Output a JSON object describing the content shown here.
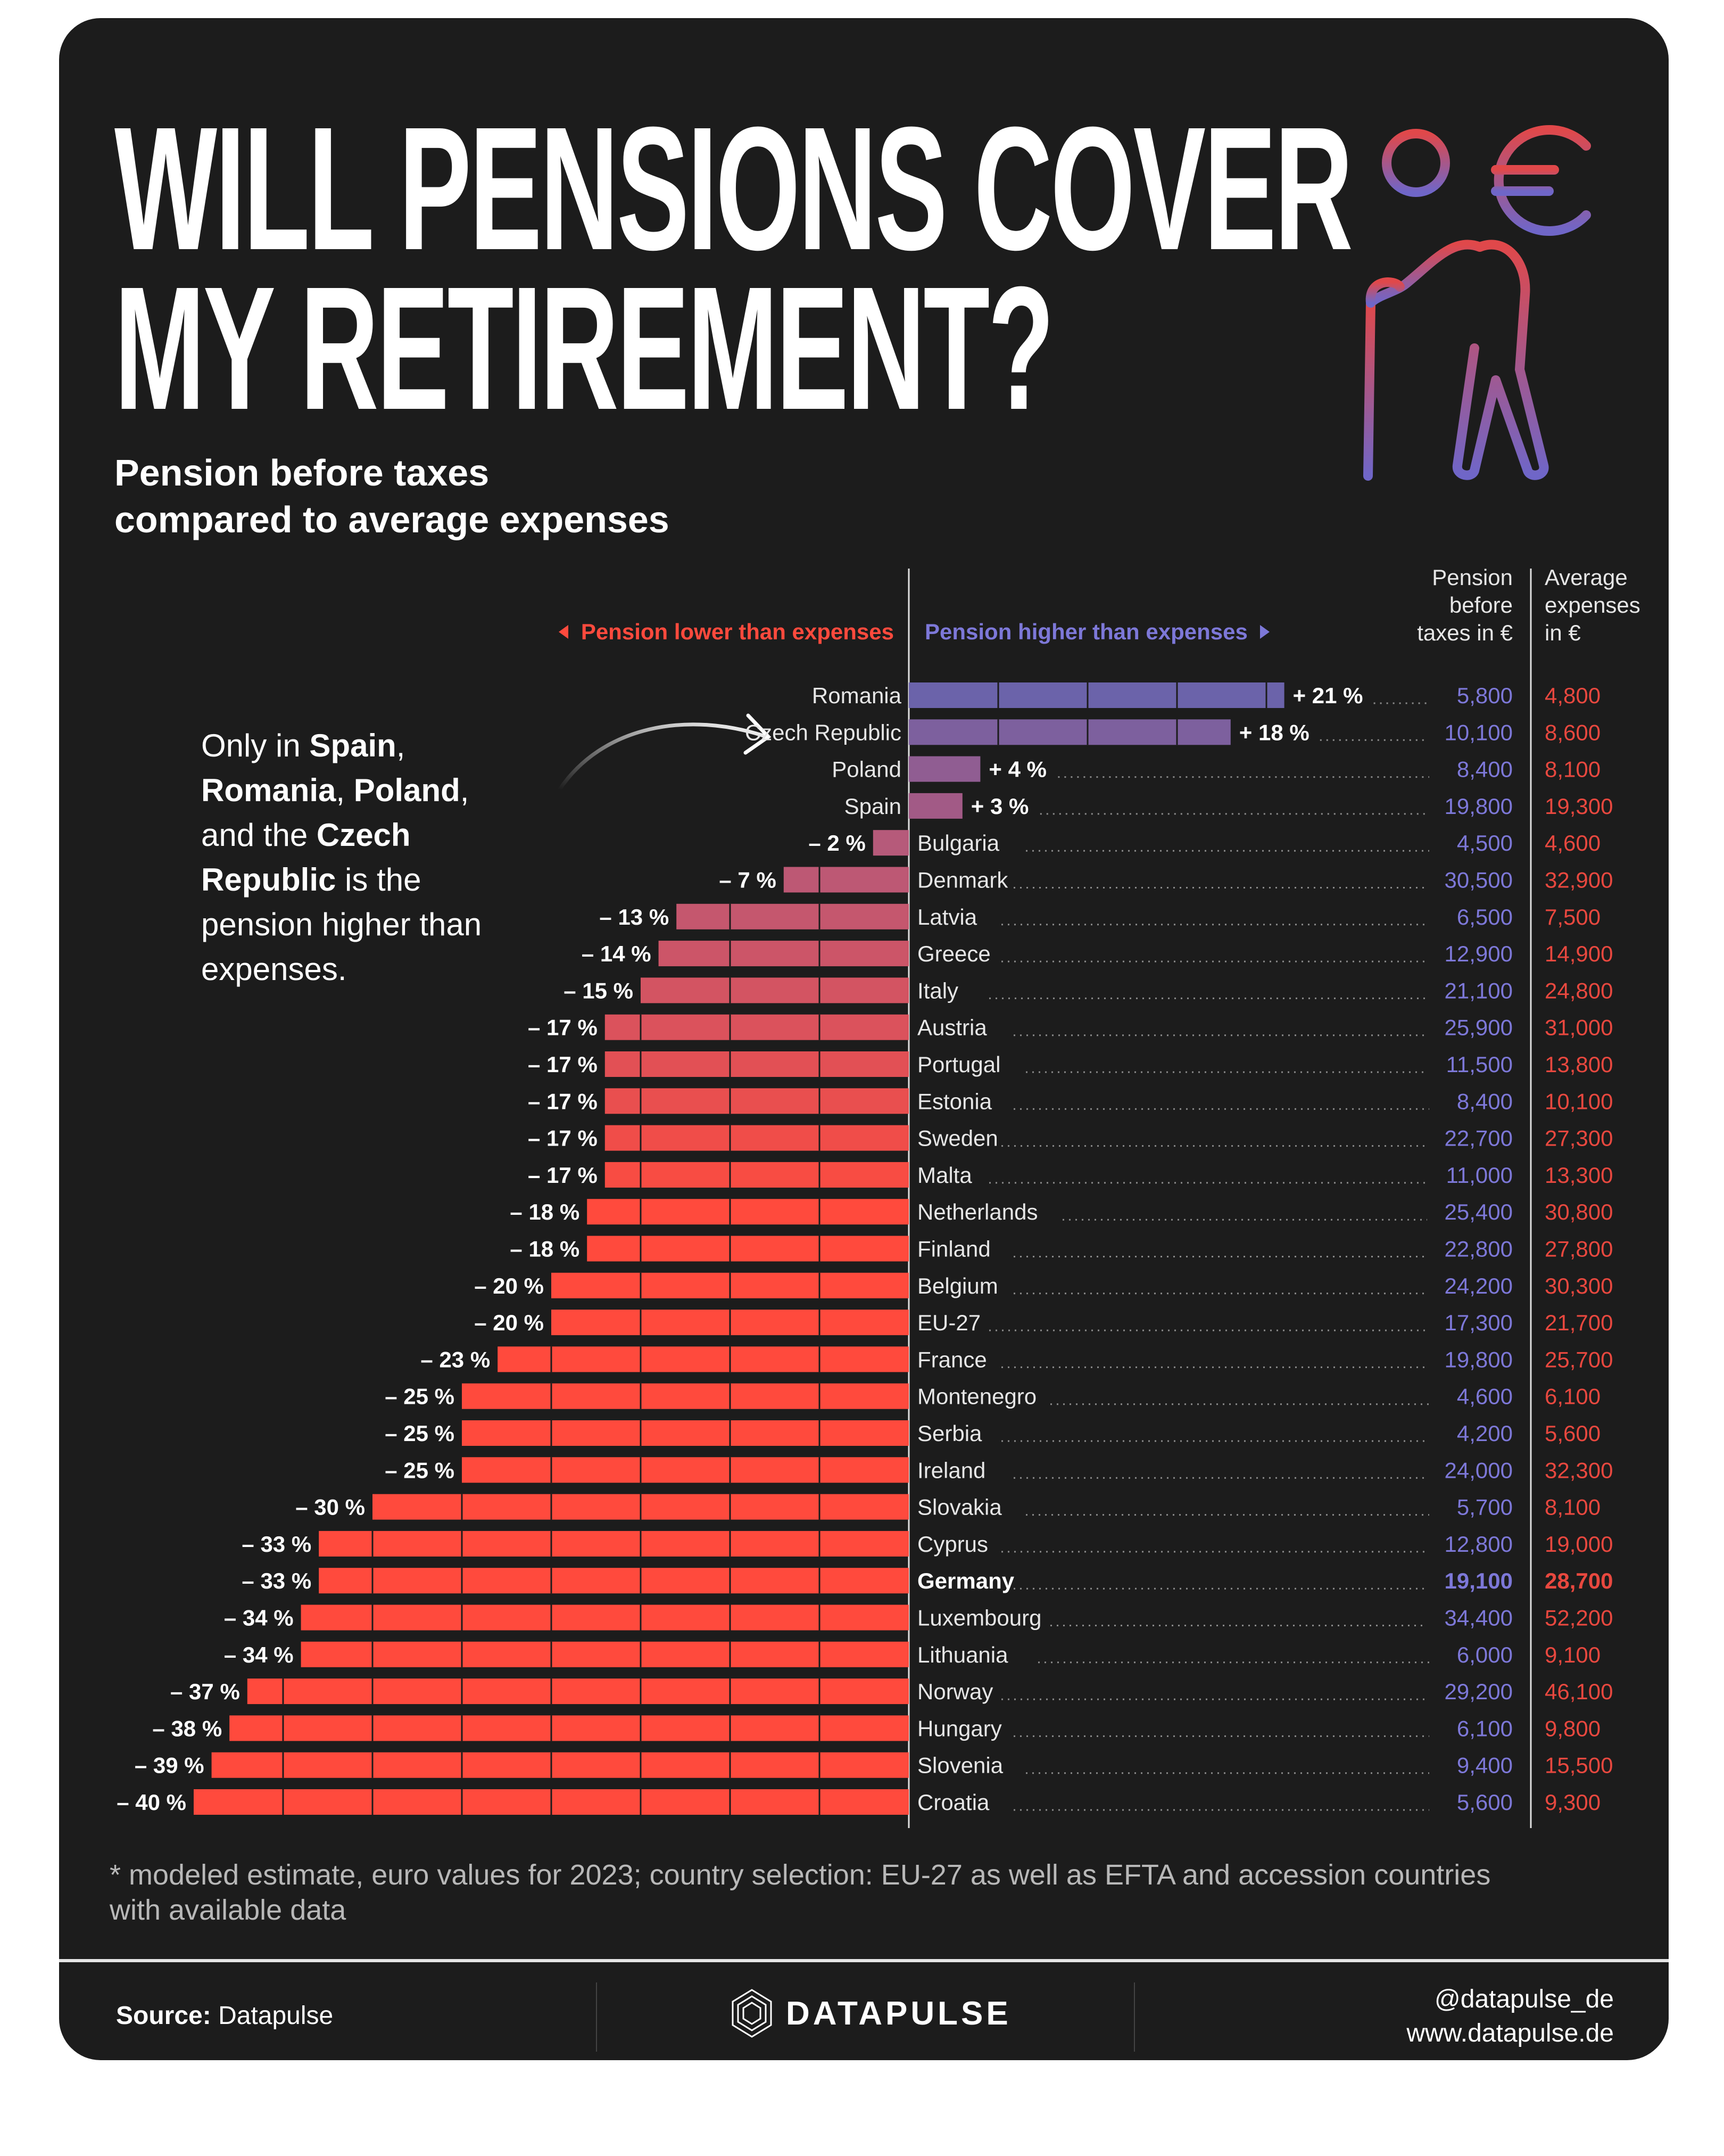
{
  "title_lines": [
    "WILL PENSIONS COVER",
    "MY RETIREMENT?"
  ],
  "subtitle_lines": [
    "Pension before taxes",
    "compared to average expenses"
  ],
  "legend": {
    "negative": "Pension lower than expenses",
    "positive": "Pension higher than expenses"
  },
  "column_headers": {
    "pension": [
      "Pension",
      "before",
      "taxes in €"
    ],
    "expenses": [
      "Average",
      "expenses",
      "in €"
    ]
  },
  "annotation": {
    "parts": [
      {
        "t": "Only in ",
        "b": false
      },
      {
        "t": "Spain",
        "b": true
      },
      {
        "t": ", ",
        "b": false
      },
      {
        "t": "Romania",
        "b": true
      },
      {
        "t": ", ",
        "b": false
      },
      {
        "t": "Poland",
        "b": true
      },
      {
        "t": ", and the ",
        "b": false
      },
      {
        "t": "Czech Republic",
        "b": true
      },
      {
        "t": " is the pension higher than expenses.",
        "b": false
      }
    ]
  },
  "colors": {
    "background": "#1c1c1c",
    "positive_start": "#6b63aa",
    "positive_end": "#a25a86",
    "negative_start": "#b65a7a",
    "negative_end": "#ff4a3d",
    "pension_text": "#7d78d8",
    "expenses_text": "#e8483f"
  },
  "icon": "elderly-person-with-cane-and-euro-icon",
  "chart_data": {
    "type": "bar",
    "orientation": "horizontal-diverging",
    "unit": "%",
    "highlight": "Germany",
    "rows": [
      {
        "country": "Romania",
        "pct": 21,
        "label": "+ 21 %",
        "pension": "5,800",
        "expenses": "4,800"
      },
      {
        "country": "Czech Republic",
        "pct": 18,
        "label": "+ 18 %",
        "pension": "10,100",
        "expenses": "8,600"
      },
      {
        "country": "Poland",
        "pct": 4,
        "label": "+ 4 %",
        "pension": "8,400",
        "expenses": "8,100"
      },
      {
        "country": "Spain",
        "pct": 3,
        "label": "+ 3 %",
        "pension": "19,800",
        "expenses": "19,300"
      },
      {
        "country": "Bulgaria",
        "pct": -2,
        "label": "– 2 %",
        "pension": "4,500",
        "expenses": "4,600"
      },
      {
        "country": "Denmark",
        "pct": -7,
        "label": "– 7 %",
        "pension": "30,500",
        "expenses": "32,900"
      },
      {
        "country": "Latvia",
        "pct": -13,
        "label": "– 13 %",
        "pension": "6,500",
        "expenses": "7,500"
      },
      {
        "country": "Greece",
        "pct": -14,
        "label": "– 14 %",
        "pension": "12,900",
        "expenses": "14,900"
      },
      {
        "country": "Italy",
        "pct": -15,
        "label": "– 15 %",
        "pension": "21,100",
        "expenses": "24,800"
      },
      {
        "country": "Austria",
        "pct": -17,
        "label": "– 17 %",
        "pension": "25,900",
        "expenses": "31,000"
      },
      {
        "country": "Portugal",
        "pct": -17,
        "label": "– 17 %",
        "pension": "11,500",
        "expenses": "13,800"
      },
      {
        "country": "Estonia",
        "pct": -17,
        "label": "– 17 %",
        "pension": "8,400",
        "expenses": "10,100"
      },
      {
        "country": "Sweden",
        "pct": -17,
        "label": "– 17 %",
        "pension": "22,700",
        "expenses": "27,300"
      },
      {
        "country": "Malta",
        "pct": -17,
        "label": "– 17 %",
        "pension": "11,000",
        "expenses": "13,300"
      },
      {
        "country": "Netherlands",
        "pct": -18,
        "label": "– 18 %",
        "pension": "25,400",
        "expenses": "30,800"
      },
      {
        "country": "Finland",
        "pct": -18,
        "label": "– 18 %",
        "pension": "22,800",
        "expenses": "27,800"
      },
      {
        "country": "Belgium",
        "pct": -20,
        "label": "– 20 %",
        "pension": "24,200",
        "expenses": "30,300"
      },
      {
        "country": "EU-27",
        "pct": -20,
        "label": "– 20 %",
        "pension": "17,300",
        "expenses": "21,700"
      },
      {
        "country": "France",
        "pct": -23,
        "label": "– 23 %",
        "pension": "19,800",
        "expenses": "25,700"
      },
      {
        "country": "Montenegro",
        "pct": -25,
        "label": "– 25 %",
        "pension": "4,600",
        "expenses": "6,100"
      },
      {
        "country": "Serbia",
        "pct": -25,
        "label": "– 25 %",
        "pension": "4,200",
        "expenses": "5,600"
      },
      {
        "country": "Ireland",
        "pct": -25,
        "label": "– 25 %",
        "pension": "24,000",
        "expenses": "32,300"
      },
      {
        "country": "Slovakia",
        "pct": -30,
        "label": "– 30 %",
        "pension": "5,700",
        "expenses": "8,100"
      },
      {
        "country": "Cyprus",
        "pct": -33,
        "label": "– 33 %",
        "pension": "12,800",
        "expenses": "19,000"
      },
      {
        "country": "Germany",
        "pct": -33,
        "label": "– 33 %",
        "pension": "19,100",
        "expenses": "28,700"
      },
      {
        "country": "Luxembourg",
        "pct": -34,
        "label": "– 34 %",
        "pension": "34,400",
        "expenses": "52,200"
      },
      {
        "country": "Lithuania",
        "pct": -34,
        "label": "– 34 %",
        "pension": "6,000",
        "expenses": "9,100"
      },
      {
        "country": "Norway",
        "pct": -37,
        "label": "– 37 %",
        "pension": "29,200",
        "expenses": "46,100"
      },
      {
        "country": "Hungary",
        "pct": -38,
        "label": "– 38 %",
        "pension": "6,100",
        "expenses": "9,800"
      },
      {
        "country": "Slovenia",
        "pct": -39,
        "label": "– 39 %",
        "pension": "9,400",
        "expenses": "15,500"
      },
      {
        "country": "Croatia",
        "pct": -40,
        "label": "– 40 %",
        "pension": "5,600",
        "expenses": "9,300"
      }
    ]
  },
  "footnote": "* modeled estimate, euro values for 2023; country selection: EU-27 as well as EFTA and accession countries with available data",
  "footer": {
    "source_label": "Source:",
    "source_value": "Datapulse",
    "logo_text": "DATAPULSE",
    "handle": "@datapulse_de",
    "website": "www.datapulse.de"
  }
}
